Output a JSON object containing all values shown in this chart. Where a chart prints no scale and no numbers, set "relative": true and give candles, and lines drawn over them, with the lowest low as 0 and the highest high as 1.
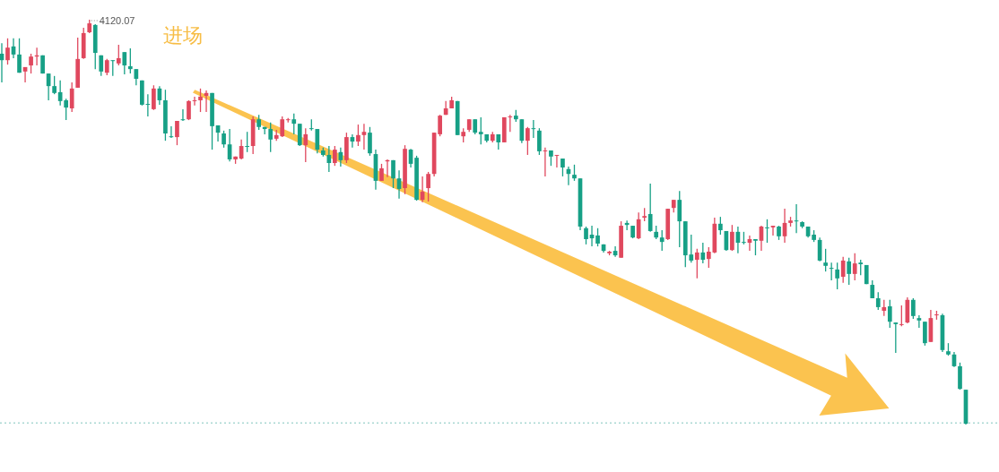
{
  "chart_data": {
    "type": "candlestick",
    "relative": true,
    "categories": [
      null,
      null,
      null,
      null,
      null,
      null,
      null,
      null,
      null,
      null,
      null,
      null,
      null,
      null,
      null,
      null,
      null,
      null,
      null,
      null,
      null,
      null,
      null,
      null,
      null,
      null,
      null,
      null,
      null,
      null,
      null,
      null,
      null,
      null,
      null,
      null,
      null,
      null,
      null,
      null,
      null,
      null,
      null,
      null,
      null,
      null,
      null,
      null,
      null,
      null,
      null,
      null,
      null,
      null,
      null,
      null,
      null,
      null,
      null,
      null,
      null,
      null,
      null,
      null,
      null,
      null,
      null,
      null,
      null,
      null,
      null,
      null,
      null,
      null,
      null,
      null,
      null,
      null,
      null,
      null,
      null,
      null,
      null,
      null,
      null,
      null,
      null,
      null,
      null,
      null,
      null,
      null,
      null,
      null,
      null,
      null,
      null,
      null,
      null,
      null,
      null,
      null,
      null,
      null,
      null,
      null,
      null,
      null,
      null,
      null,
      null,
      null,
      null,
      null,
      null,
      null,
      null,
      null,
      null,
      null,
      null,
      null,
      null,
      null,
      null,
      null,
      null,
      null,
      null,
      null,
      null,
      null,
      null,
      null,
      null,
      null,
      null,
      null,
      null,
      null,
      null,
      null,
      null,
      null,
      null,
      null,
      null,
      null,
      null,
      null,
      null,
      null,
      null,
      null,
      null,
      null,
      null,
      null,
      null,
      null,
      null,
      null,
      null,
      null,
      null,
      null
    ],
    "ohlc": [
      [
        0.916,
        0.942,
        0.845,
        0.9
      ],
      [
        0.9,
        0.954,
        0.889,
        0.931
      ],
      [
        0.934,
        0.954,
        0.905,
        0.914
      ],
      [
        0.914,
        0.954,
        0.869,
        0.869
      ],
      [
        0.872,
        0.883,
        0.845,
        0.883
      ],
      [
        0.887,
        0.916,
        0.867,
        0.909
      ],
      [
        0.909,
        0.931,
        0.887,
        0.912
      ],
      [
        0.912,
        0.912,
        0.867,
        0.867
      ],
      [
        0.867,
        0.867,
        0.801,
        0.836
      ],
      [
        0.836,
        0.861,
        0.816,
        0.819
      ],
      [
        0.821,
        0.85,
        0.788,
        0.799
      ],
      [
        0.801,
        0.805,
        0.752,
        0.783
      ],
      [
        0.781,
        0.845,
        0.772,
        0.83
      ],
      [
        0.832,
        0.956,
        0.832,
        0.903
      ],
      [
        0.905,
        0.98,
        0.903,
        0.967
      ],
      [
        0.969,
        1,
        0.967,
        0.991
      ],
      [
        0.987,
        0.989,
        0.878,
        0.918
      ],
      [
        0.912,
        0.912,
        0.861,
        0.872
      ],
      [
        0.869,
        0.903,
        0.863,
        0.9
      ],
      [
        0.9,
        0.9,
        0.861,
        0.898
      ],
      [
        0.892,
        0.938,
        0.887,
        0.905
      ],
      [
        0.92,
        0.92,
        0.865,
        0.887
      ],
      [
        0.885,
        0.929,
        0.867,
        0.878
      ],
      [
        0.878,
        0.878,
        0.838,
        0.854
      ],
      [
        0.85,
        0.85,
        0.788,
        0.79
      ],
      [
        0.792,
        0.816,
        0.761,
        0.79
      ],
      [
        0.779,
        0.838,
        0.777,
        0.83
      ],
      [
        0.83,
        0.836,
        0.79,
        0.801
      ],
      [
        0.801,
        0.827,
        0.701,
        0.719
      ],
      [
        0.712,
        0.737,
        0.708,
        0.71
      ],
      [
        0.71,
        0.75,
        0.69,
        0.75
      ],
      [
        0.754,
        0.779,
        0.75,
        0.752
      ],
      [
        0.754,
        0.801,
        0.752,
        0.799
      ],
      [
        0.799,
        0.81,
        0.788,
        0.801
      ],
      [
        0.801,
        0.83,
        0.772,
        0.81
      ],
      [
        0.812,
        0.825,
        0.772,
        0.819
      ],
      [
        0.819,
        0.819,
        0.679,
        0.737
      ],
      [
        0.739,
        0.739,
        0.699,
        0.721
      ],
      [
        0.719,
        0.726,
        0.684,
        0.692
      ],
      [
        0.692,
        0.73,
        0.65,
        0.655
      ],
      [
        0.655,
        0.662,
        0.644,
        0.662
      ],
      [
        0.657,
        0.704,
        0.655,
        0.688
      ],
      [
        0.688,
        0.723,
        0.673,
        0.686
      ],
      [
        0.688,
        0.761,
        0.668,
        0.754
      ],
      [
        0.754,
        0.765,
        0.728,
        0.735
      ],
      [
        0.735,
        0.735,
        0.717,
        0.73
      ],
      [
        0.73,
        0.746,
        0.673,
        0.704
      ],
      [
        0.706,
        0.728,
        0.701,
        0.715
      ],
      [
        0.712,
        0.761,
        0.71,
        0.754
      ],
      [
        0.752,
        0.757,
        0.746,
        0.754
      ],
      [
        0.754,
        0.768,
        0.717,
        0.743
      ],
      [
        0.743,
        0.743,
        0.688,
        0.69
      ],
      [
        0.69,
        0.732,
        0.648,
        0.717
      ],
      [
        0.732,
        0.754,
        0.726,
        0.73
      ],
      [
        0.73,
        0.73,
        0.67,
        0.679
      ],
      [
        0.677,
        0.684,
        0.662,
        0.666
      ],
      [
        0.666,
        0.688,
        0.624,
        0.646
      ],
      [
        0.646,
        0.688,
        0.639,
        0.679
      ],
      [
        0.673,
        0.684,
        0.637,
        0.653
      ],
      [
        0.653,
        0.721,
        0.646,
        0.71
      ],
      [
        0.71,
        0.717,
        0.684,
        0.699
      ],
      [
        0.699,
        0.741,
        0.688,
        0.715
      ],
      [
        0.715,
        0.743,
        0.679,
        0.723
      ],
      [
        0.721,
        0.735,
        0.664,
        0.67
      ],
      [
        0.668,
        0.679,
        0.58,
        0.602
      ],
      [
        0.602,
        0.644,
        0.602,
        0.633
      ],
      [
        0.65,
        0.655,
        0.611,
        0.653
      ],
      [
        0.653,
        0.653,
        0.584,
        0.608
      ],
      [
        0.608,
        0.628,
        0.558,
        0.582
      ],
      [
        0.584,
        0.69,
        0.569,
        0.681
      ],
      [
        0.679,
        0.681,
        0.635,
        0.644
      ],
      [
        0.659,
        0.664,
        0.553,
        0.555
      ],
      [
        0.555,
        0.613,
        0.549,
        0.575
      ],
      [
        0.584,
        0.624,
        0.551,
        0.619
      ],
      [
        0.619,
        0.721,
        0.613,
        0.721
      ],
      [
        0.717,
        0.765,
        0.712,
        0.763
      ],
      [
        0.765,
        0.799,
        0.765,
        0.781
      ],
      [
        0.781,
        0.81,
        0.781,
        0.801
      ],
      [
        0.799,
        0.799,
        0.715,
        0.715
      ],
      [
        0.712,
        0.732,
        0.697,
        0.723
      ],
      [
        0.728,
        0.754,
        0.723,
        0.754
      ],
      [
        0.754,
        0.754,
        0.717,
        0.721
      ],
      [
        0.723,
        0.759,
        0.692,
        0.717
      ],
      [
        0.717,
        0.717,
        0.697,
        0.701
      ],
      [
        0.701,
        0.723,
        0.697,
        0.717
      ],
      [
        0.717,
        0.717,
        0.679,
        0.697
      ],
      [
        0.697,
        0.759,
        0.697,
        0.759
      ],
      [
        0.759,
        0.765,
        0.723,
        0.761
      ],
      [
        0.763,
        0.777,
        0.748,
        0.754
      ],
      [
        0.754,
        0.754,
        0.695,
        0.701
      ],
      [
        0.701,
        0.735,
        0.666,
        0.732
      ],
      [
        0.732,
        0.752,
        0.708,
        0.73
      ],
      [
        0.726,
        0.732,
        0.666,
        0.675
      ],
      [
        0.675,
        0.684,
        0.613,
        0.677
      ],
      [
        0.677,
        0.677,
        0.639,
        0.662
      ],
      [
        0.664,
        0.666,
        0.635,
        0.666
      ],
      [
        0.657,
        0.657,
        0.613,
        0.635
      ],
      [
        0.631,
        0.637,
        0.591,
        0.619
      ],
      [
        0.617,
        0.642,
        0.602,
        0.608
      ],
      [
        0.608,
        0.608,
        0.48,
        0.489
      ],
      [
        0.485,
        0.489,
        0.445,
        0.458
      ],
      [
        0.469,
        0.491,
        0.44,
        0.46
      ],
      [
        0.467,
        0.485,
        0.44,
        0.447
      ],
      [
        0.445,
        0.445,
        0.425,
        0.429
      ],
      [
        0.423,
        0.429,
        0.418,
        0.427
      ],
      [
        0.429,
        0.44,
        0.414,
        0.418
      ],
      [
        0.412,
        0.502,
        0.412,
        0.491
      ],
      [
        0.498,
        0.504,
        0.48,
        0.493
      ],
      [
        0.491,
        0.491,
        0.46,
        0.462
      ],
      [
        0.46,
        0.524,
        0.458,
        0.507
      ],
      [
        0.511,
        0.535,
        0.502,
        0.515
      ],
      [
        0.52,
        0.595,
        0.476,
        0.478
      ],
      [
        0.476,
        0.491,
        0.458,
        0.462
      ],
      [
        0.462,
        0.48,
        0.429,
        0.451
      ],
      [
        0.458,
        0.533,
        0.456,
        0.533
      ],
      [
        0.535,
        0.555,
        0.524,
        0.555
      ],
      [
        0.555,
        0.577,
        0.438,
        0.502
      ],
      [
        0.502,
        0.502,
        0.389,
        0.418
      ],
      [
        0.42,
        0.469,
        0.4,
        0.405
      ],
      [
        0.407,
        0.434,
        0.361,
        0.425
      ],
      [
        0.425,
        0.449,
        0.398,
        0.407
      ],
      [
        0.409,
        0.438,
        0.387,
        0.427
      ],
      [
        0.425,
        0.511,
        0.423,
        0.496
      ],
      [
        0.496,
        0.513,
        0.469,
        0.48
      ],
      [
        0.478,
        0.478,
        0.429,
        0.431
      ],
      [
        0.431,
        0.493,
        0.429,
        0.476
      ],
      [
        0.476,
        0.489,
        0.423,
        0.449
      ],
      [
        0.451,
        0.476,
        0.445,
        0.449
      ],
      [
        0.449,
        0.467,
        0.429,
        0.458
      ],
      [
        0.458,
        0.458,
        0.418,
        0.454
      ],
      [
        0.454,
        0.491,
        0.429,
        0.489
      ],
      [
        0.487,
        0.507,
        0.449,
        0.485
      ],
      [
        0.487,
        0.491,
        0.467,
        0.491
      ],
      [
        0.489,
        0.491,
        0.456,
        0.465
      ],
      [
        0.465,
        0.533,
        0.449,
        0.498
      ],
      [
        0.498,
        0.513,
        0.489,
        0.504
      ],
      [
        0.504,
        0.544,
        0.473,
        0.502
      ],
      [
        0.5,
        0.502,
        0.485,
        0.489
      ],
      [
        0.489,
        0.489,
        0.462,
        0.465
      ],
      [
        0.469,
        0.48,
        0.451,
        0.456
      ],
      [
        0.456,
        0.462,
        0.403,
        0.405
      ],
      [
        0.4,
        0.434,
        0.378,
        0.392
      ],
      [
        0.387,
        0.4,
        0.356,
        0.385
      ],
      [
        0.383,
        0.4,
        0.334,
        0.361
      ],
      [
        0.365,
        0.414,
        0.35,
        0.405
      ],
      [
        0.403,
        0.412,
        0.345,
        0.372
      ],
      [
        0.372,
        0.423,
        0.356,
        0.398
      ],
      [
        0.4,
        0.407,
        0.369,
        0.396
      ],
      [
        0.394,
        0.394,
        0.347,
        0.347
      ],
      [
        0.345,
        0.356,
        0.312,
        0.312
      ],
      [
        0.312,
        0.327,
        0.283,
        0.29
      ],
      [
        0.281,
        0.308,
        0.268,
        0.29
      ],
      [
        0.292,
        0.308,
        0.239,
        0.254
      ],
      [
        0.252,
        0.252,
        0.177,
        0.248
      ],
      [
        0.246,
        0.294,
        0.243,
        0.248
      ],
      [
        0.252,
        0.314,
        0.25,
        0.308
      ],
      [
        0.308,
        0.312,
        0.261,
        0.268
      ],
      [
        0.263,
        0.27,
        0.239,
        0.257
      ],
      [
        0.254,
        0.254,
        0.195,
        0.201
      ],
      [
        0.204,
        0.283,
        0.204,
        0.263
      ],
      [
        0.27,
        0.281,
        0.259,
        0.272
      ],
      [
        0.27,
        0.274,
        0.179,
        0.184
      ],
      [
        0.181,
        0.201,
        0.17,
        0.173
      ],
      [
        0.173,
        0.179,
        0.142,
        0.144
      ],
      [
        0.144,
        0.153,
        0.086,
        0.088
      ],
      [
        0.086,
        0.086,
        0,
        0.002
      ]
    ],
    "colors": [
      "#17a086",
      "#e0485e",
      "#17a086",
      "#17a086",
      "#e0485e",
      "#e0485e",
      "#e0485e",
      "#17a086",
      "#17a086",
      "#17a086",
      "#17a086",
      "#17a086",
      "#e0485e",
      "#e0485e",
      "#e0485e",
      "#e0485e",
      "#17a086",
      "#17a086",
      "#e0485e",
      "#17a086",
      "#e0485e",
      "#17a086",
      "#17a086",
      "#17a086",
      "#17a086",
      "#17a086",
      "#e0485e",
      "#17a086",
      "#17a086",
      "#17a086",
      "#e0485e",
      "#17a086",
      "#e0485e",
      "#e0485e",
      "#e0485e",
      "#e0485e",
      "#17a086",
      "#17a086",
      "#17a086",
      "#17a086",
      "#e0485e",
      "#e0485e",
      "#17a086",
      "#e0485e",
      "#17a086",
      "#17a086",
      "#17a086",
      "#e0485e",
      "#e0485e",
      "#e0485e",
      "#17a086",
      "#17a086",
      "#e0485e",
      "#17a086",
      "#17a086",
      "#17a086",
      "#17a086",
      "#e0485e",
      "#17a086",
      "#e0485e",
      "#17a086",
      "#e0485e",
      "#e0485e",
      "#17a086",
      "#17a086",
      "#e0485e",
      "#e0485e",
      "#17a086",
      "#17a086",
      "#e0485e",
      "#17a086",
      "#17a086",
      "#e0485e",
      "#e0485e",
      "#e0485e",
      "#e0485e",
      "#e0485e",
      "#e0485e",
      "#17a086",
      "#e0485e",
      "#e0485e",
      "#17a086",
      "#17a086",
      "#17a086",
      "#e0485e",
      "#17a086",
      "#e0485e",
      "#e0485e",
      "#17a086",
      "#17a086",
      "#e0485e",
      "#17a086",
      "#17a086",
      "#e0485e",
      "#17a086",
      "#e0485e",
      "#17a086",
      "#17a086",
      "#17a086",
      "#17a086",
      "#17a086",
      "#17a086",
      "#17a086",
      "#17a086",
      "#e0485e",
      "#17a086",
      "#e0485e",
      "#17a086",
      "#17a086",
      "#e0485e",
      "#e0485e",
      "#17a086",
      "#17a086",
      "#17a086",
      "#e0485e",
      "#e0485e",
      "#17a086",
      "#17a086",
      "#17a086",
      "#e0485e",
      "#17a086",
      "#e0485e",
      "#e0485e",
      "#17a086",
      "#17a086",
      "#e0485e",
      "#17a086",
      "#17a086",
      "#e0485e",
      "#17a086",
      "#e0485e",
      "#17a086",
      "#e0485e",
      "#17a086",
      "#e0485e",
      "#e0485e",
      "#17a086",
      "#17a086",
      "#17a086",
      "#17a086",
      "#17a086",
      "#17a086",
      "#17a086",
      "#17a086",
      "#e0485e",
      "#17a086",
      "#e0485e",
      "#17a086",
      "#17a086",
      "#17a086",
      "#17a086",
      "#e0485e",
      "#17a086",
      "#17a086",
      "#e0485e",
      "#e0485e",
      "#17a086",
      "#17a086",
      "#17a086",
      "#e0485e",
      "#e0485e",
      "#17a086",
      "#17a086",
      "#17a086",
      "#17a086",
      "#17a086"
    ],
    "annotations": [
      "4120.07",
      "进场"
    ],
    "ref_lines": [
      {
        "axis": "y",
        "value": 0.004,
        "color": "#7fc4bd",
        "line_style": "dotted"
      }
    ]
  }
}
